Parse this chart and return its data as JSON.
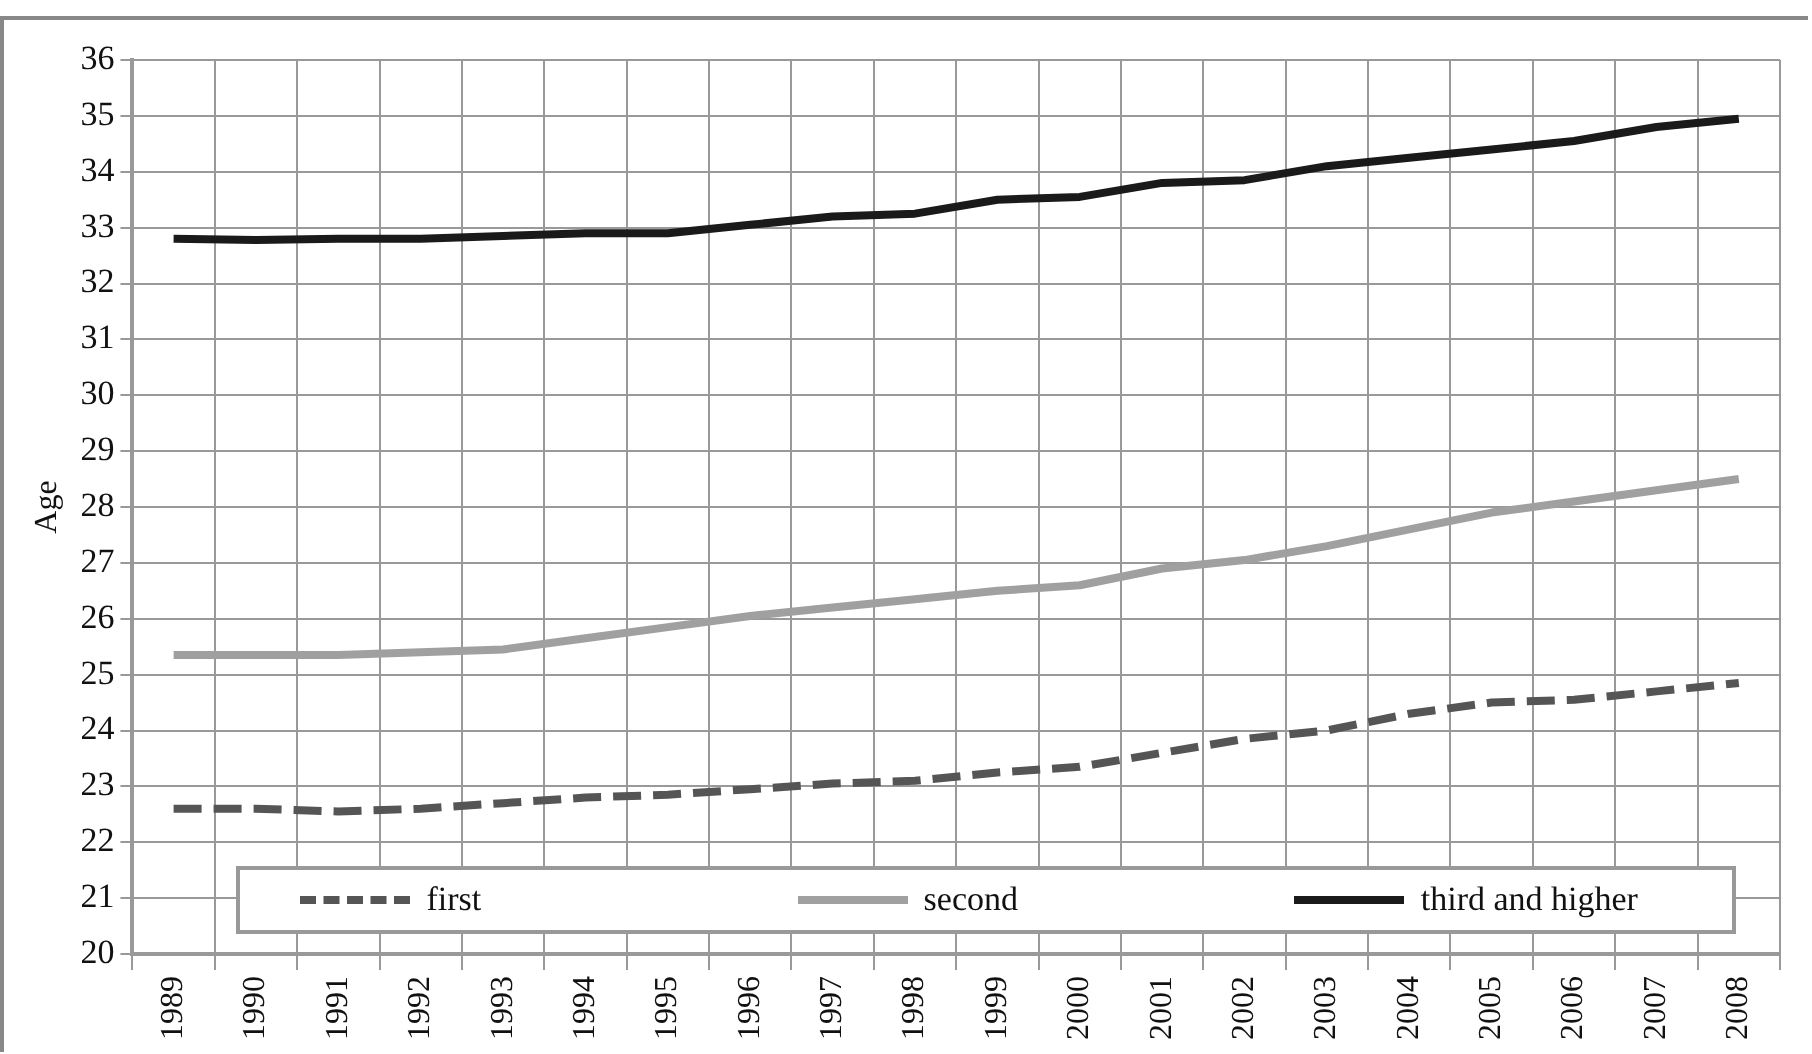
{
  "chart_data": {
    "type": "line",
    "ylabel": "Age",
    "categories": [
      "1989",
      "1990",
      "1991",
      "1992",
      "1993",
      "1994",
      "1995",
      "1996",
      "1997",
      "1998",
      "1999",
      "2000",
      "2001",
      "2002",
      "2003",
      "2004",
      "2005",
      "2006",
      "2007",
      "2008"
    ],
    "series": [
      {
        "name": "first",
        "color": "#555555",
        "line_style": "dashed",
        "values": [
          22.6,
          22.6,
          22.55,
          22.6,
          22.7,
          22.8,
          22.85,
          22.95,
          23.05,
          23.1,
          23.25,
          23.35,
          23.6,
          23.85,
          24.0,
          24.3,
          24.5,
          24.55,
          24.7,
          24.85
        ]
      },
      {
        "name": "second",
        "color": "#a0a0a0",
        "line_style": "solid",
        "values": [
          25.35,
          25.35,
          25.35,
          25.4,
          25.45,
          25.65,
          25.85,
          26.05,
          26.2,
          26.35,
          26.5,
          26.6,
          26.9,
          27.05,
          27.3,
          27.6,
          27.9,
          28.1,
          28.3,
          28.5
        ]
      },
      {
        "name": "third and higher",
        "color": "#1a1a1a",
        "line_style": "solid",
        "values": [
          32.8,
          32.78,
          32.8,
          32.8,
          32.85,
          32.9,
          32.9,
          33.05,
          33.2,
          33.25,
          33.5,
          33.55,
          33.8,
          33.85,
          34.1,
          34.25,
          34.4,
          34.55,
          34.8,
          34.95
        ]
      }
    ],
    "ylim": [
      20,
      36
    ],
    "yticks": [
      20,
      21,
      22,
      23,
      24,
      25,
      26,
      27,
      28,
      29,
      30,
      31,
      32,
      33,
      34,
      35,
      36
    ],
    "grid": true,
    "legend": "bottom",
    "marker": "none"
  }
}
